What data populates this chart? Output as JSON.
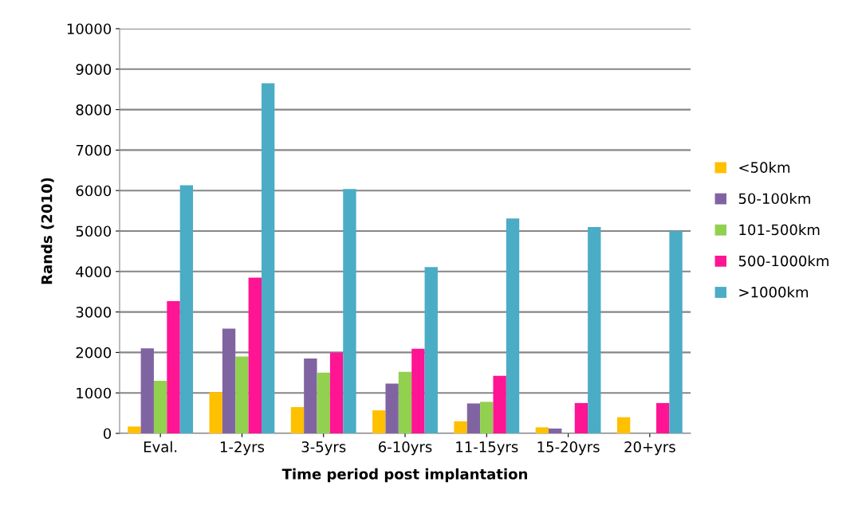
{
  "chart_data": {
    "type": "bar",
    "xlabel": "Time period post implantation",
    "ylabel": "Rands (2010)",
    "categories": [
      "Eval.",
      "1-2yrs",
      "3-5yrs",
      "6-10yrs",
      "11-15yrs",
      "15-20yrs",
      "20+yrs"
    ],
    "series": [
      {
        "name": "<50km",
        "color": "#ffc000",
        "values": [
          170,
          1020,
          650,
          570,
          300,
          150,
          400
        ]
      },
      {
        "name": "50-100km",
        "color": "#8064a2",
        "values": [
          2100,
          2590,
          1850,
          1230,
          740,
          120,
          0
        ]
      },
      {
        "name": "101-500km",
        "color": "#92d050",
        "values": [
          1300,
          1900,
          1500,
          1520,
          780,
          0,
          0
        ]
      },
      {
        "name": "500-1000km",
        "color": "#ff1493",
        "values": [
          3270,
          3850,
          2000,
          2090,
          1420,
          750,
          750
        ]
      },
      {
        "name": ">1000km",
        "color": "#4bacc6",
        "values": [
          6130,
          8650,
          6040,
          4110,
          5310,
          5100,
          5000
        ]
      }
    ],
    "ylim": [
      0,
      10000
    ],
    "yticks": [
      0,
      1000,
      2000,
      3000,
      4000,
      5000,
      6000,
      7000,
      8000,
      9000,
      10000
    ],
    "grid": "y",
    "legend": "right"
  }
}
